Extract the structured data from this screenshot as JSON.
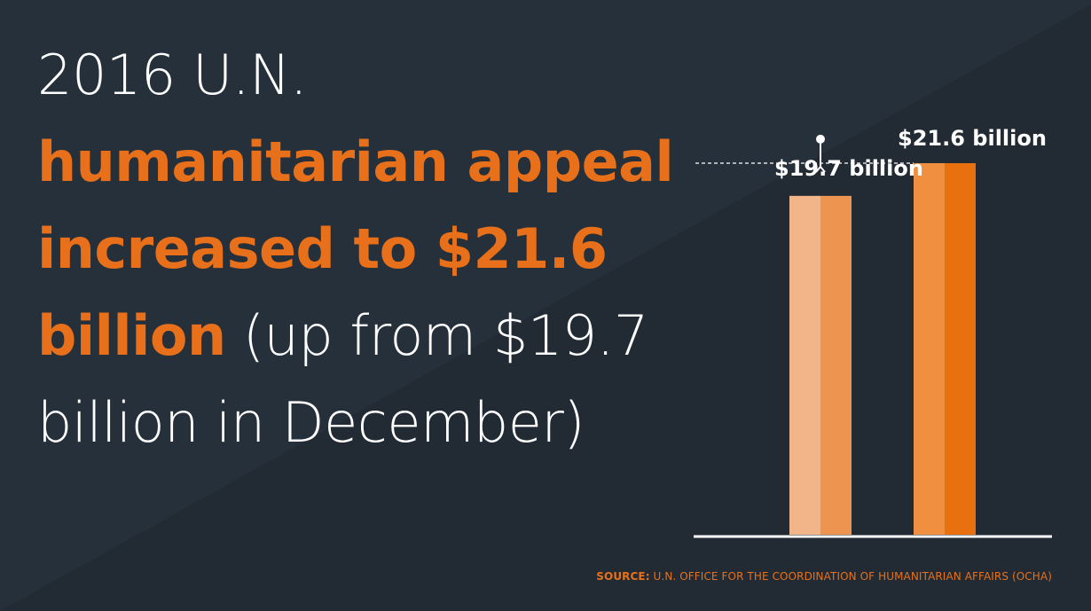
{
  "headline": {
    "part1": "2016 U.N. ",
    "part2": "humanitarian appeal increased to $21.6 billion",
    "part3": " (up from $19.7 billion in December)"
  },
  "source": {
    "label": "SOURCE:",
    "text": " U.N. OFFICE FOR THE COORDINATION OF HUMANITARIAN AFFAIRS (OCHA)"
  },
  "colors": {
    "background": "#26303a",
    "accent": "#e8701a",
    "bar_previous_light": "#f2b58a",
    "bar_previous_dark": "#ec9450",
    "bar_current_light": "#ef8f3f",
    "bar_current_dark": "#e8700f"
  },
  "chart_data": {
    "type": "bar",
    "unit": "billion USD",
    "ylim": [
      0,
      21.6
    ],
    "grid": false,
    "values": [
      19.7,
      21.6
    ],
    "data_labels": [
      "$19.7 billion",
      "$21.6 billion"
    ],
    "annotation": "increase arrow from 19.7 to 21.6 with dashed reference line at 21.6"
  }
}
